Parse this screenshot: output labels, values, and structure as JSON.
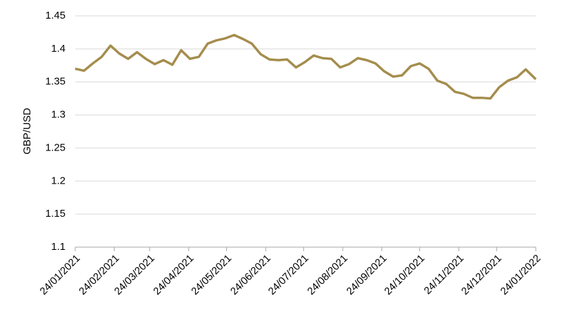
{
  "chart_data": {
    "type": "line",
    "ylabel": "GBP/USD",
    "color": "#a48d4d",
    "grid": true,
    "x": [
      "24/01/2021",
      "31/01/2021",
      "07/02/2021",
      "14/02/2021",
      "21/02/2021",
      "28/02/2021",
      "07/03/2021",
      "14/03/2021",
      "21/03/2021",
      "28/03/2021",
      "04/04/2021",
      "11/04/2021",
      "18/04/2021",
      "25/04/2021",
      "02/05/2021",
      "09/05/2021",
      "16/05/2021",
      "23/05/2021",
      "30/05/2021",
      "06/06/2021",
      "13/06/2021",
      "20/06/2021",
      "27/06/2021",
      "04/07/2021",
      "11/07/2021",
      "18/07/2021",
      "25/07/2021",
      "01/08/2021",
      "08/08/2021",
      "15/08/2021",
      "22/08/2021",
      "29/08/2021",
      "05/09/2021",
      "12/09/2021",
      "19/09/2021",
      "26/09/2021",
      "03/10/2021",
      "10/10/2021",
      "17/10/2021",
      "24/10/2021",
      "31/10/2021",
      "07/11/2021",
      "14/11/2021",
      "21/11/2021",
      "28/11/2021",
      "05/12/2021",
      "12/12/2021",
      "19/12/2021",
      "26/12/2021",
      "02/01/2022",
      "09/01/2022",
      "16/01/2022",
      "23/01/2022",
      "24/01/2022"
    ],
    "values": [
      1.37,
      1.367,
      1.378,
      1.388,
      1.405,
      1.393,
      1.385,
      1.395,
      1.385,
      1.377,
      1.383,
      1.376,
      1.398,
      1.385,
      1.388,
      1.408,
      1.413,
      1.416,
      1.421,
      1.415,
      1.408,
      1.392,
      1.384,
      1.383,
      1.384,
      1.372,
      1.38,
      1.39,
      1.386,
      1.385,
      1.372,
      1.377,
      1.386,
      1.383,
      1.378,
      1.366,
      1.358,
      1.36,
      1.374,
      1.378,
      1.37,
      1.352,
      1.347,
      1.335,
      1.332,
      1.326,
      1.326,
      1.325,
      1.342,
      1.352,
      1.357,
      1.369,
      1.356,
      1.354
    ],
    "xlim": [
      "24/01/2021",
      "24/01/2022"
    ],
    "xticks": [
      "24/01/2021",
      "24/02/2021",
      "24/03/2021",
      "24/04/2021",
      "24/05/2021",
      "24/06/2021",
      "24/07/2021",
      "24/08/2021",
      "24/09/2021",
      "24/10/2021",
      "24/11/2021",
      "24/12/2021",
      "24/01/2022"
    ],
    "ylim": [
      1.1,
      1.45
    ],
    "yticks": [
      1.1,
      1.15,
      1.2,
      1.25,
      1.3,
      1.35,
      1.4,
      1.45
    ]
  }
}
